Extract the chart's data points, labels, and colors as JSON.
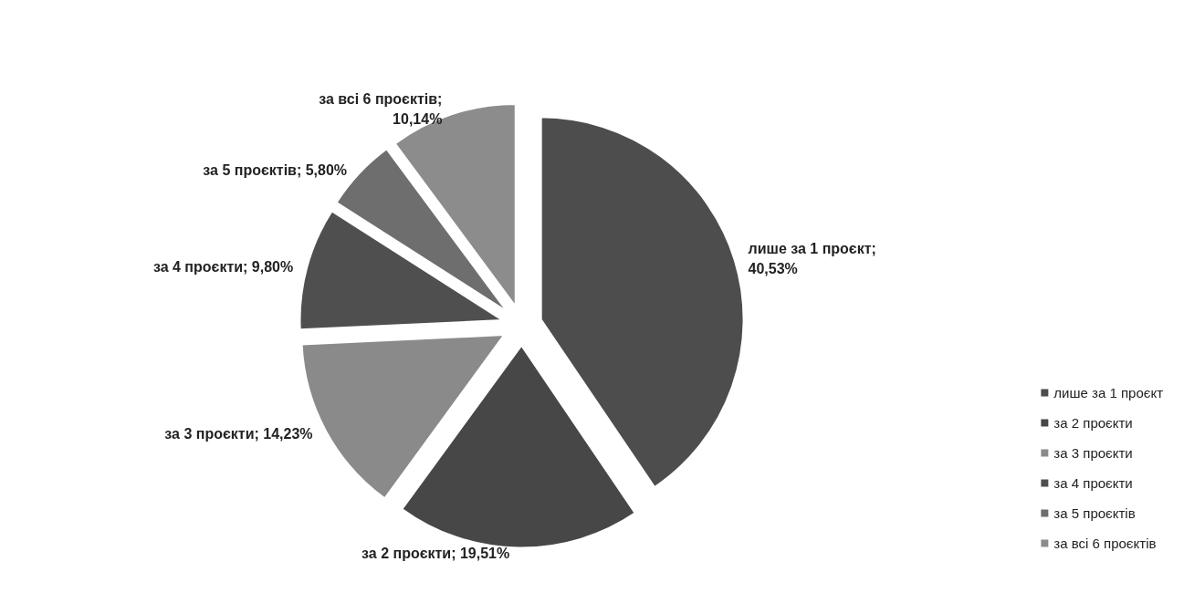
{
  "chart_data": {
    "type": "pie",
    "categories": [
      "лише за 1 проєкт",
      "за 2 проєкти",
      "за 3 проєкти",
      "за 4 проєкти",
      "за 5 проєктів",
      "за всі 6 проєктів"
    ],
    "values": [
      40.53,
      19.51,
      14.23,
      9.8,
      5.8,
      10.14
    ],
    "value_labels": [
      "лише за 1 проєкт; 40,53%",
      "за 2 проєкти; 19,51%",
      "за 3 проєкти; 14,23%",
      "за 4 проєкти; 9,80%",
      "за 5 проєктів; 5,80%",
      "за всі 6 проєктів; 10,14%"
    ],
    "colors": [
      "#4d4d4d",
      "#474747",
      "#8a8a8a",
      "#4f4f4f",
      "#6e6e6e",
      "#8c8c8c"
    ],
    "legend": "right"
  }
}
